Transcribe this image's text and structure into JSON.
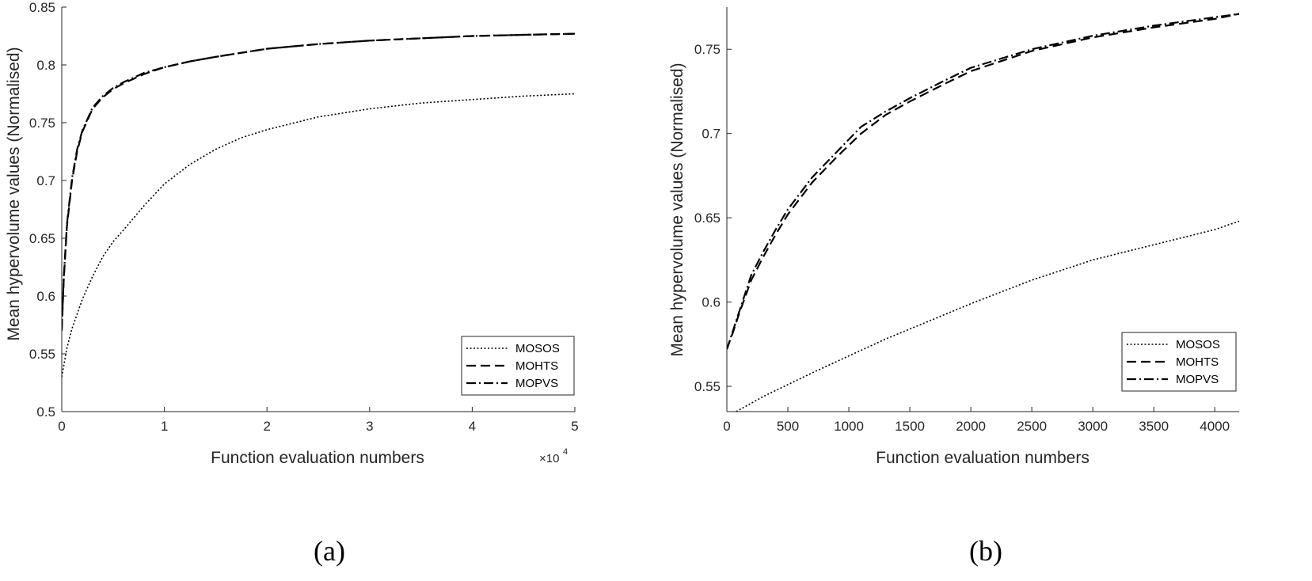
{
  "chart_data": [
    {
      "type": "line",
      "caption": "(a)",
      "xlabel": "Function evaluation numbers",
      "ylabel": "Mean hypervolume values (Normalised)",
      "x_exponent_prefix": "×10",
      "x_exponent": "4",
      "xlim": [
        0,
        5
      ],
      "ylim": [
        0.5,
        0.85
      ],
      "xticks": [
        0,
        1,
        2,
        3,
        4,
        5
      ],
      "xtick_labels": [
        "0",
        "1",
        "2",
        "3",
        "4",
        "5"
      ],
      "yticks": [
        0.5,
        0.55,
        0.6,
        0.65,
        0.7,
        0.75,
        0.8,
        0.85
      ],
      "ytick_labels": [
        "0.5",
        "0.55",
        "0.6",
        "0.65",
        "0.7",
        "0.75",
        "0.8",
        "0.85"
      ],
      "legend_position": "bottom-right",
      "series": [
        {
          "name": "MOSOS",
          "style": "dotted",
          "x": [
            0,
            0.05,
            0.1,
            0.2,
            0.3,
            0.4,
            0.5,
            0.6,
            0.8,
            1.0,
            1.25,
            1.5,
            1.75,
            2.0,
            2.5,
            3.0,
            3.5,
            4.0,
            4.5,
            5.0
          ],
          "y": [
            0.53,
            0.555,
            0.572,
            0.597,
            0.617,
            0.634,
            0.647,
            0.657,
            0.678,
            0.697,
            0.714,
            0.727,
            0.737,
            0.744,
            0.755,
            0.762,
            0.767,
            0.77,
            0.773,
            0.775
          ]
        },
        {
          "name": "MOHTS",
          "style": "dashed",
          "x": [
            0,
            0.02,
            0.05,
            0.1,
            0.15,
            0.2,
            0.3,
            0.4,
            0.5,
            0.6,
            0.8,
            1.0,
            1.25,
            1.5,
            2.0,
            2.5,
            3.0,
            3.5,
            4.0,
            4.5,
            5.0
          ],
          "y": [
            0.57,
            0.615,
            0.66,
            0.7,
            0.725,
            0.742,
            0.762,
            0.772,
            0.779,
            0.784,
            0.792,
            0.798,
            0.803,
            0.807,
            0.814,
            0.818,
            0.821,
            0.823,
            0.825,
            0.826,
            0.827
          ]
        },
        {
          "name": "MOPVS",
          "style": "dashdot",
          "x": [
            0,
            0.02,
            0.05,
            0.1,
            0.15,
            0.2,
            0.3,
            0.4,
            0.5,
            0.6,
            0.8,
            1.0,
            1.25,
            1.5,
            2.0,
            2.5,
            3.0,
            3.5,
            4.0,
            4.5,
            5.0
          ],
          "y": [
            0.572,
            0.617,
            0.662,
            0.702,
            0.727,
            0.743,
            0.763,
            0.773,
            0.78,
            0.785,
            0.793,
            0.798,
            0.803,
            0.807,
            0.814,
            0.818,
            0.821,
            0.823,
            0.825,
            0.826,
            0.827
          ]
        }
      ]
    },
    {
      "type": "line",
      "caption": "(b)",
      "xlabel": "Function evaluation numbers",
      "ylabel": "Mean hypervolume values (Normalised)",
      "xlim": [
        0,
        4200
      ],
      "ylim": [
        0.535,
        0.775
      ],
      "xticks": [
        0,
        500,
        1000,
        1500,
        2000,
        2500,
        3000,
        3500,
        4000
      ],
      "xtick_labels": [
        "0",
        "500",
        "1000",
        "1500",
        "2000",
        "2500",
        "3000",
        "3500",
        "4000"
      ],
      "yticks": [
        0.55,
        0.6,
        0.65,
        0.7,
        0.75
      ],
      "ytick_labels": [
        "0.55",
        "0.6",
        "0.65",
        "0.7",
        "0.75"
      ],
      "legend_position": "bottom-right",
      "series": [
        {
          "name": "MOSOS",
          "style": "dotted",
          "x": [
            0,
            100,
            200,
            300,
            500,
            700,
            1000,
            1300,
            1600,
            2000,
            2500,
            3000,
            3500,
            4000,
            4200
          ],
          "y": [
            0.532,
            0.536,
            0.54,
            0.544,
            0.551,
            0.558,
            0.568,
            0.578,
            0.587,
            0.599,
            0.613,
            0.625,
            0.634,
            0.643,
            0.648
          ]
        },
        {
          "name": "MOHTS",
          "style": "dashed",
          "x": [
            0,
            50,
            100,
            200,
            300,
            400,
            500,
            700,
            900,
            1100,
            1300,
            1500,
            1800,
            2000,
            2500,
            3000,
            3500,
            4000,
            4200
          ],
          "y": [
            0.572,
            0.582,
            0.593,
            0.613,
            0.627,
            0.64,
            0.652,
            0.671,
            0.686,
            0.7,
            0.711,
            0.719,
            0.73,
            0.737,
            0.749,
            0.757,
            0.763,
            0.768,
            0.771
          ]
        },
        {
          "name": "MOPVS",
          "style": "dashdot",
          "x": [
            0,
            50,
            100,
            200,
            300,
            400,
            500,
            700,
            900,
            1100,
            1300,
            1500,
            1800,
            2000,
            2500,
            3000,
            3500,
            4000,
            4200
          ],
          "y": [
            0.572,
            0.583,
            0.594,
            0.616,
            0.63,
            0.643,
            0.655,
            0.674,
            0.689,
            0.704,
            0.713,
            0.721,
            0.732,
            0.739,
            0.75,
            0.758,
            0.764,
            0.769,
            0.771
          ]
        }
      ]
    }
  ]
}
